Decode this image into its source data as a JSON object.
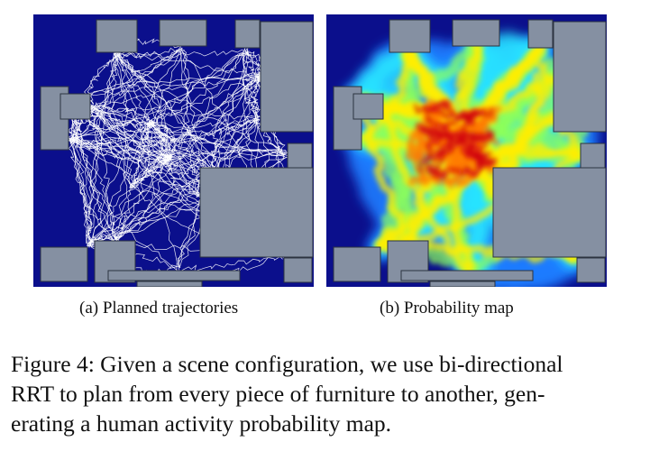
{
  "panels": [
    {
      "id": "a",
      "caption": "(a) Planned trajectories"
    },
    {
      "id": "b",
      "caption": "(b) Probability map"
    }
  ],
  "figure_caption": {
    "lines": [
      "Figure 4: Given a scene configuration, we use bi-directional",
      "RRT to plan from every piece of furniture to another, gen-",
      "erating a human activity probability map."
    ]
  },
  "colors": {
    "background": "#0b0f8c",
    "furniture": "#8590a2",
    "furniture_edge": "#2c3340",
    "trajectory": "#ffffff"
  }
}
